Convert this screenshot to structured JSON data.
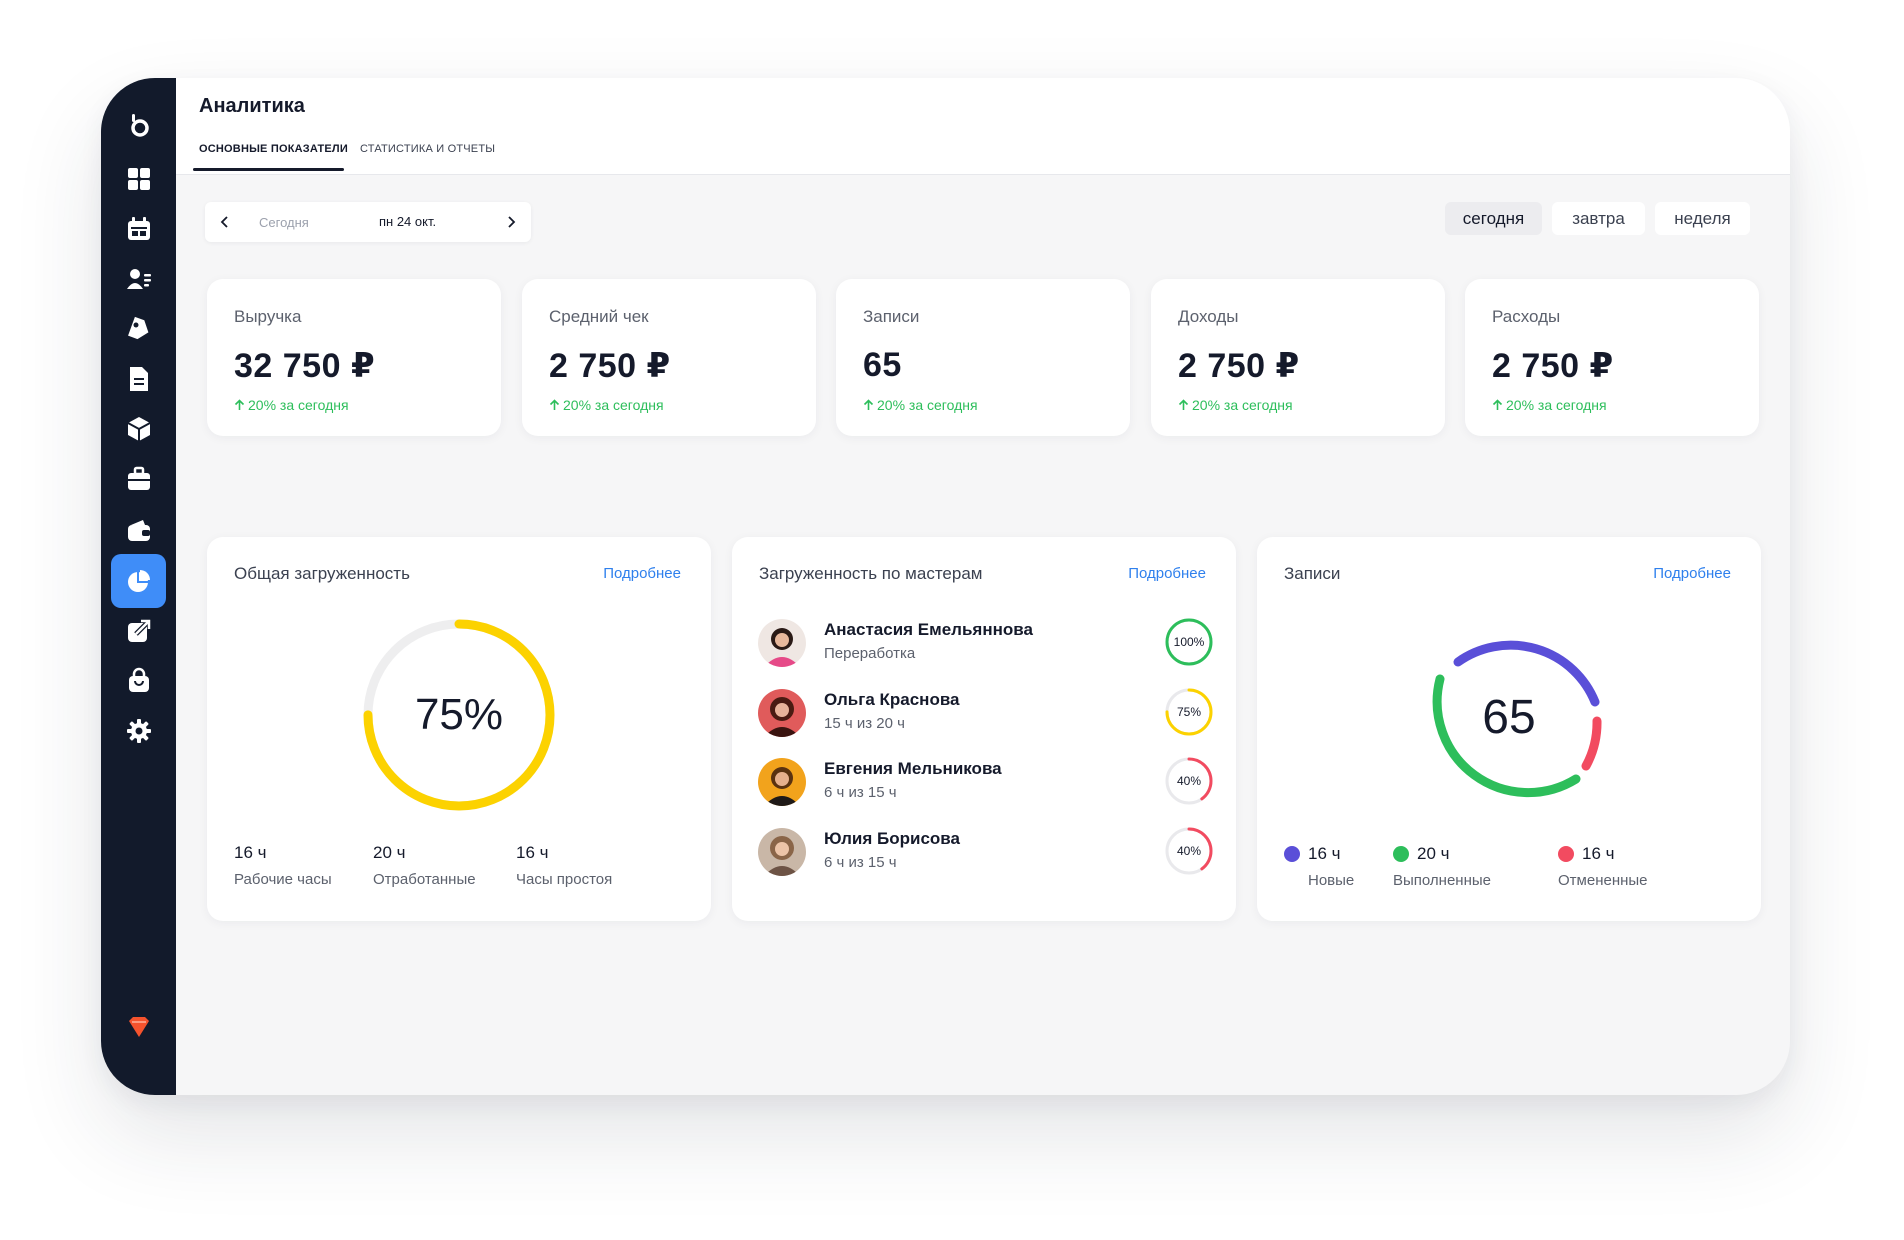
{
  "header": {
    "title": "Аналитика",
    "tabs": [
      {
        "label": "ОСНОВНЫЕ ПОКАЗАТЕЛИ"
      },
      {
        "label": "СТАТИСТИКА И ОТЧЕТЫ"
      }
    ]
  },
  "sidebar": {
    "items": [
      {
        "icon": "dashboard-icon"
      },
      {
        "icon": "calendar-icon"
      },
      {
        "icon": "clients-icon"
      },
      {
        "icon": "tag-icon"
      },
      {
        "icon": "document-icon"
      },
      {
        "icon": "box-icon"
      },
      {
        "icon": "briefcase-icon"
      },
      {
        "icon": "wallet-icon"
      },
      {
        "icon": "pie-chart-icon",
        "active": true
      },
      {
        "icon": "external-link-icon"
      },
      {
        "icon": "shopping-bag-icon"
      },
      {
        "icon": "settings-icon"
      }
    ],
    "accent": "#3f8df8"
  },
  "date_picker": {
    "placeholder": "Сегодня",
    "date": "пн 24 окт."
  },
  "periods": [
    {
      "label": "сегодня",
      "active": true
    },
    {
      "label": "завтра"
    },
    {
      "label": "неделя"
    }
  ],
  "kpis": [
    {
      "label": "Выручка",
      "value": "32 750 ₽",
      "change": "20% за сегодня"
    },
    {
      "label": "Средний чек",
      "value": "2 750 ₽",
      "change": "20% за сегодня"
    },
    {
      "label": "Записи",
      "value": "65",
      "change": "20% за сегодня"
    },
    {
      "label": "Доходы",
      "value": "2 750 ₽",
      "change": "20% за сегодня"
    },
    {
      "label": "Расходы",
      "value": "2 750 ₽",
      "change": "20% за сегодня"
    }
  ],
  "load": {
    "title": "Общая загруженность",
    "more": "Подробнее",
    "percent": "75%",
    "fraction": 0.75,
    "color": "#fcd200",
    "stats": [
      {
        "value": "16 ч",
        "label": "Рабочие часы"
      },
      {
        "value": "20 ч",
        "label": "Отработанные"
      },
      {
        "value": "16 ч",
        "label": "Часы простоя"
      }
    ]
  },
  "masters": {
    "title": "Загруженность по мастерам",
    "more": "Подробнее",
    "items": [
      {
        "name": "Анастасия Емельяннова",
        "sub": "Переработка",
        "percent": "100%",
        "fraction": 1.0,
        "color": "#2dbe5b"
      },
      {
        "name": "Ольга Краснова",
        "sub": "15 ч из 20 ч",
        "percent": "75%",
        "fraction": 0.75,
        "color": "#fcd200"
      },
      {
        "name": "Евгения Мельникова",
        "sub": "6 ч из 15 ч",
        "percent": "40%",
        "fraction": 0.4,
        "color": "#f24b60"
      },
      {
        "name": "Юлия Борисова",
        "sub": "6 ч из 15 ч",
        "percent": "40%",
        "fraction": 0.4,
        "color": "#f24b60"
      }
    ]
  },
  "records": {
    "title": "Записи",
    "more": "Подробнее",
    "total": "65",
    "legend": [
      {
        "value": "16 ч",
        "label": "Новые",
        "color": "#5a4fd8"
      },
      {
        "value": "20 ч",
        "label": "Выполненные",
        "color": "#2dbe5b"
      },
      {
        "value": "16 ч",
        "label": "Отмененные",
        "color": "#f24b60"
      }
    ]
  }
}
